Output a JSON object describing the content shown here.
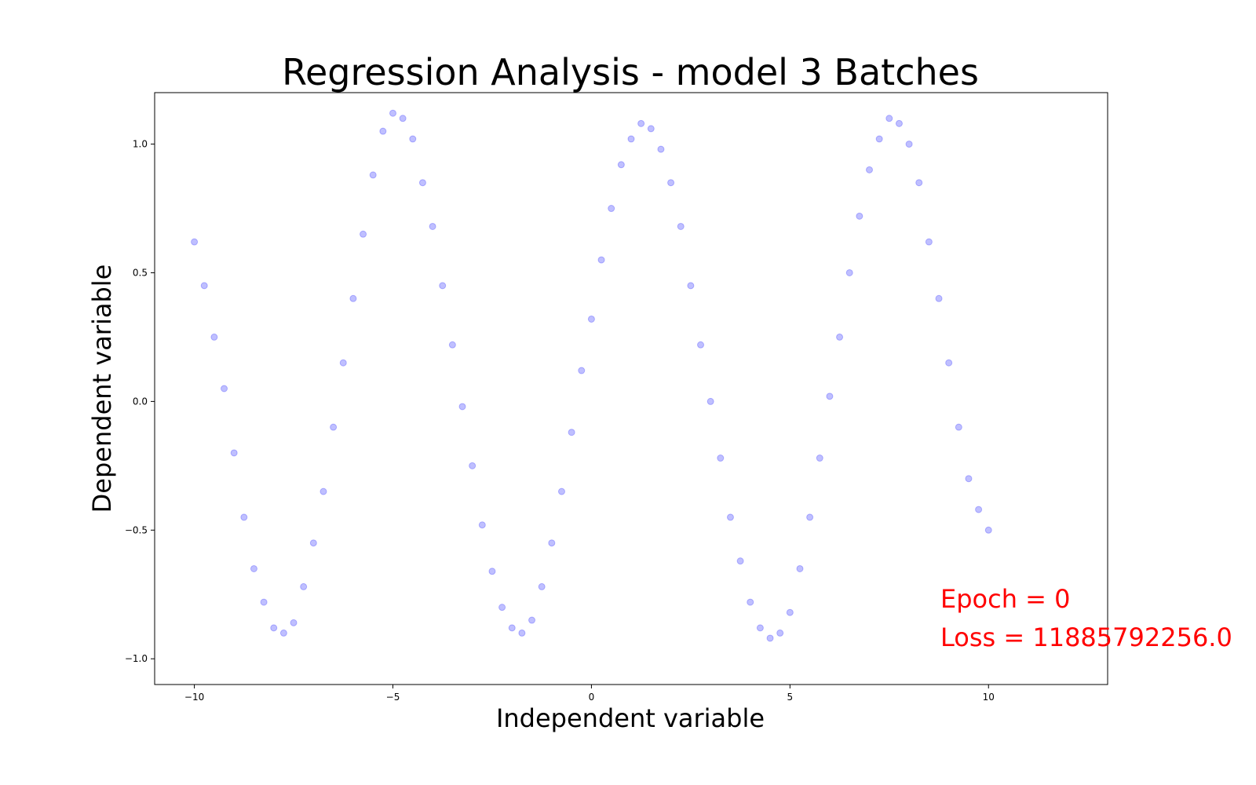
{
  "chart_data": {
    "type": "scatter",
    "title": "Regression Analysis - model 3 Batches",
    "xlabel": "Independent variable",
    "ylabel": "Dependent variable",
    "xlim": [
      -11,
      13
    ],
    "ylim": [
      -1.1,
      1.2
    ],
    "xticks": [
      -10,
      -5,
      0,
      5,
      10
    ],
    "xtick_labels": [
      "−10",
      "−5",
      "0",
      "5",
      "10"
    ],
    "yticks": [
      -1.0,
      -0.5,
      0.0,
      0.5,
      1.0
    ],
    "ytick_labels": [
      "−1.0",
      "−0.5",
      "0.0",
      "0.5",
      "1.0"
    ],
    "grid": false,
    "marker_color": "#0000ff",
    "marker_alpha": 0.25,
    "annotations": [
      {
        "text": "Epoch = 0",
        "color": "#ff0000"
      },
      {
        "text": "Loss = 11885792256.0",
        "color": "#ff0000"
      }
    ],
    "series": [
      {
        "x": [
          -10.0,
          -9.75,
          -9.5,
          -9.25,
          -9.0,
          -8.75,
          -8.5,
          -8.25,
          -8.0,
          -7.75,
          -7.5,
          -7.25,
          -7.0,
          -6.75,
          -6.5,
          -6.25,
          -6.0,
          -5.75,
          -5.5,
          -5.25,
          -5.0,
          -4.75,
          -4.5,
          -4.25,
          -4.0,
          -3.75,
          -3.5,
          -3.25,
          -3.0,
          -2.75,
          -2.5,
          -2.25,
          -2.0,
          -1.75,
          -1.5,
          -1.25,
          -1.0,
          -0.75,
          -0.5,
          -0.25,
          0.0,
          0.25,
          0.5,
          0.75,
          1.0,
          1.25,
          1.5,
          1.75,
          2.0,
          2.25,
          2.5,
          2.75,
          3.0,
          3.25,
          3.5,
          3.75,
          4.0,
          4.25,
          4.5,
          4.75,
          5.0,
          5.25,
          5.5,
          5.75,
          6.0,
          6.25,
          6.5,
          6.75,
          7.0,
          7.25,
          7.5,
          7.75,
          8.0,
          8.25,
          8.5,
          8.75,
          9.0,
          9.25,
          9.5,
          9.75,
          10.0
        ],
        "y": [
          0.62,
          0.45,
          0.25,
          0.05,
          -0.2,
          -0.45,
          -0.65,
          -0.78,
          -0.88,
          -0.9,
          -0.86,
          -0.72,
          -0.55,
          -0.35,
          -0.1,
          0.15,
          0.4,
          0.65,
          0.88,
          1.05,
          1.12,
          1.1,
          1.02,
          0.85,
          0.68,
          0.45,
          0.22,
          -0.02,
          -0.25,
          -0.48,
          -0.66,
          -0.8,
          -0.88,
          -0.9,
          -0.85,
          -0.72,
          -0.55,
          -0.35,
          -0.12,
          0.12,
          0.32,
          0.55,
          0.75,
          0.92,
          1.02,
          1.08,
          1.06,
          0.98,
          0.85,
          0.68,
          0.45,
          0.22,
          0.0,
          -0.22,
          -0.45,
          -0.62,
          -0.78,
          -0.88,
          -0.92,
          -0.9,
          -0.82,
          -0.65,
          -0.45,
          -0.22,
          0.02,
          0.25,
          0.5,
          0.72,
          0.9,
          1.02,
          1.1,
          1.08,
          1.0,
          0.85,
          0.62,
          0.4,
          0.15,
          -0.1,
          -0.3,
          -0.42,
          -0.5
        ]
      }
    ]
  }
}
